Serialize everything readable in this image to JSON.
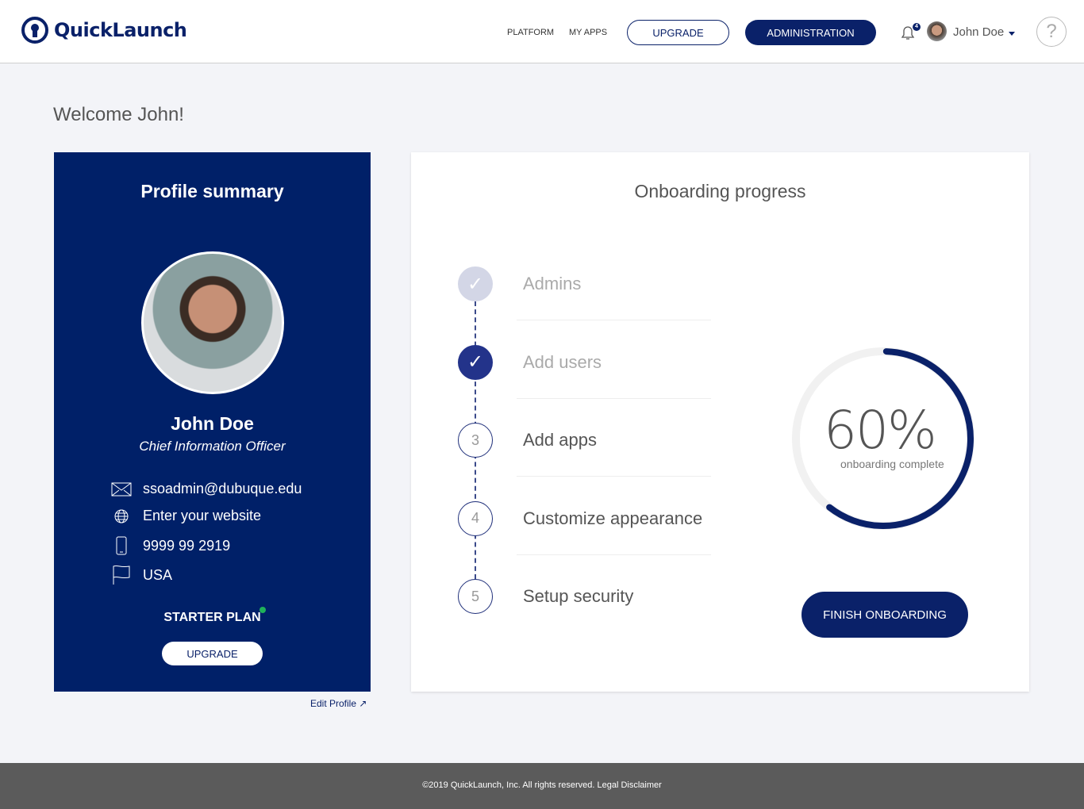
{
  "header": {
    "brand": "QuickLaunch",
    "nav": [
      "PLATFORM",
      "MY APPS"
    ],
    "upgrade": "UPGRADE",
    "administration": "ADMINISTRATION",
    "notification_count": "4",
    "user_name": "John Doe",
    "help": "?"
  },
  "welcome": "Welcome John!",
  "profile": {
    "title": "Profile summary",
    "name": "John Doe",
    "role": "Chief Information Officer",
    "email": "ssoadmin@dubuque.edu",
    "website": "Enter your website",
    "phone": "9999 99 2919",
    "country": "USA",
    "plan": "STARTER PLAN",
    "plan_status_color": "#1fb15a",
    "upgrade": "UPGRADE",
    "edit": "Edit Profile ↗"
  },
  "onboarding": {
    "title": "Onboarding progress",
    "steps": [
      {
        "label": "Admins",
        "marker": "✓",
        "state": "done-light"
      },
      {
        "label": "Add users",
        "marker": "✓",
        "state": "done"
      },
      {
        "label": "Add apps",
        "marker": "3",
        "state": "todo"
      },
      {
        "label": "Customize appearance",
        "marker": "4",
        "state": "todo"
      },
      {
        "label": "Setup security",
        "marker": "5",
        "state": "todo"
      }
    ],
    "percent": 60,
    "percent_label": "60%",
    "percent_sub": "onboarding complete",
    "finish": "FINISH ONBOARDING"
  },
  "colors": {
    "brand": "#0a2169",
    "card": "#002068"
  },
  "footer": "©2019 QuickLaunch, Inc. All rights reserved. Legal Disclaimer"
}
